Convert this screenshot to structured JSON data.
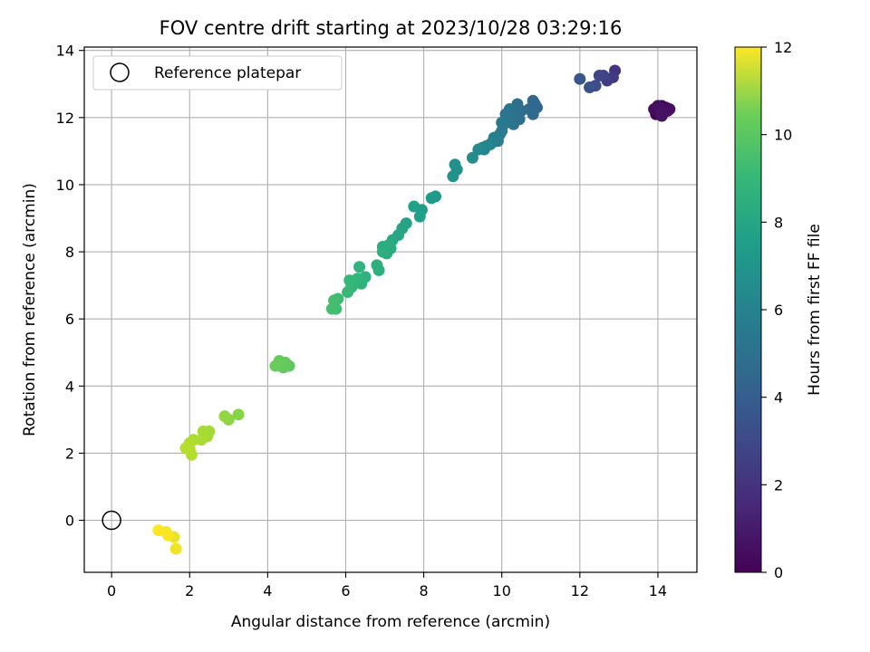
{
  "chart_data": {
    "type": "scatter",
    "title": "FOV centre drift starting at 2023/10/28 03:29:16",
    "xlabel": "Angular distance from reference (arcmin)",
    "ylabel": "Rotation from reference (arcmin)",
    "xlim": [
      -0.7,
      15
    ],
    "ylim": [
      -1.55,
      14.1
    ],
    "xticks": [
      0,
      2,
      4,
      6,
      8,
      10,
      12,
      14
    ],
    "yticks": [
      0,
      2,
      4,
      6,
      8,
      10,
      12,
      14
    ],
    "grid": true,
    "legend": {
      "placement": "top-left",
      "entries": [
        "Reference platepar"
      ]
    },
    "reference_point": {
      "x": 0,
      "y": 0
    },
    "colorbar": {
      "label": "Hours from first FF file",
      "range": [
        0,
        12
      ],
      "ticks": [
        0,
        2,
        4,
        6,
        8,
        10,
        12
      ],
      "colormap": "viridis"
    },
    "points": [
      {
        "x": 14.0,
        "y": 12.2,
        "h": 0.0
      },
      {
        "x": 14.05,
        "y": 12.1,
        "h": 0.1
      },
      {
        "x": 13.95,
        "y": 12.1,
        "h": 0.15
      },
      {
        "x": 14.1,
        "y": 12.35,
        "h": 0.2
      },
      {
        "x": 14.2,
        "y": 12.3,
        "h": 0.25
      },
      {
        "x": 14.15,
        "y": 12.15,
        "h": 0.3
      },
      {
        "x": 13.9,
        "y": 12.25,
        "h": 0.35
      },
      {
        "x": 14.3,
        "y": 12.25,
        "h": 0.4
      },
      {
        "x": 14.0,
        "y": 12.35,
        "h": 0.45
      },
      {
        "x": 14.25,
        "y": 12.2,
        "h": 0.5
      },
      {
        "x": 14.05,
        "y": 12.3,
        "h": 0.55
      },
      {
        "x": 14.1,
        "y": 12.05,
        "h": 0.6
      },
      {
        "x": 12.9,
        "y": 13.4,
        "h": 1.8
      },
      {
        "x": 12.85,
        "y": 13.2,
        "h": 2.0
      },
      {
        "x": 12.7,
        "y": 13.1,
        "h": 2.2
      },
      {
        "x": 12.6,
        "y": 13.25,
        "h": 2.4
      },
      {
        "x": 12.5,
        "y": 13.25,
        "h": 2.6
      },
      {
        "x": 12.4,
        "y": 12.95,
        "h": 2.8
      },
      {
        "x": 12.25,
        "y": 12.9,
        "h": 3.0
      },
      {
        "x": 12.0,
        "y": 13.15,
        "h": 3.2
      },
      {
        "x": 10.9,
        "y": 12.3,
        "h": 3.9
      },
      {
        "x": 10.85,
        "y": 12.4,
        "h": 4.0
      },
      {
        "x": 10.8,
        "y": 12.5,
        "h": 4.05
      },
      {
        "x": 10.8,
        "y": 12.1,
        "h": 4.1
      },
      {
        "x": 10.7,
        "y": 12.25,
        "h": 4.15
      },
      {
        "x": 10.5,
        "y": 12.2,
        "h": 4.2
      },
      {
        "x": 10.45,
        "y": 11.95,
        "h": 4.3
      },
      {
        "x": 10.4,
        "y": 12.4,
        "h": 4.35
      },
      {
        "x": 10.35,
        "y": 12.05,
        "h": 4.4
      },
      {
        "x": 10.3,
        "y": 12.2,
        "h": 4.45
      },
      {
        "x": 10.3,
        "y": 11.8,
        "h": 4.5
      },
      {
        "x": 10.25,
        "y": 12.0,
        "h": 4.55
      },
      {
        "x": 10.2,
        "y": 12.25,
        "h": 4.6
      },
      {
        "x": 10.15,
        "y": 11.9,
        "h": 4.65
      },
      {
        "x": 10.1,
        "y": 12.1,
        "h": 4.7
      },
      {
        "x": 10.05,
        "y": 11.8,
        "h": 4.75
      },
      {
        "x": 10.0,
        "y": 11.85,
        "h": 4.8
      },
      {
        "x": 10.0,
        "y": 11.6,
        "h": 4.9
      },
      {
        "x": 9.95,
        "y": 11.5,
        "h": 5.0
      },
      {
        "x": 9.9,
        "y": 11.3,
        "h": 5.1
      },
      {
        "x": 9.8,
        "y": 11.4,
        "h": 5.2
      },
      {
        "x": 9.75,
        "y": 11.25,
        "h": 5.3
      },
      {
        "x": 9.7,
        "y": 11.2,
        "h": 5.4
      },
      {
        "x": 9.6,
        "y": 11.15,
        "h": 5.45
      },
      {
        "x": 9.55,
        "y": 11.05,
        "h": 5.5
      },
      {
        "x": 9.5,
        "y": 11.1,
        "h": 5.6
      },
      {
        "x": 9.4,
        "y": 11.05,
        "h": 5.7
      },
      {
        "x": 9.25,
        "y": 10.8,
        "h": 5.8
      },
      {
        "x": 8.85,
        "y": 10.45,
        "h": 6.0
      },
      {
        "x": 8.8,
        "y": 10.6,
        "h": 6.05
      },
      {
        "x": 8.75,
        "y": 10.25,
        "h": 6.1
      },
      {
        "x": 8.3,
        "y": 9.65,
        "h": 6.4
      },
      {
        "x": 8.2,
        "y": 9.6,
        "h": 6.5
      },
      {
        "x": 7.95,
        "y": 9.25,
        "h": 6.6
      },
      {
        "x": 7.9,
        "y": 9.05,
        "h": 6.7
      },
      {
        "x": 7.75,
        "y": 9.35,
        "h": 6.8
      },
      {
        "x": 7.55,
        "y": 8.85,
        "h": 6.9
      },
      {
        "x": 7.45,
        "y": 8.7,
        "h": 7.0
      },
      {
        "x": 7.35,
        "y": 8.5,
        "h": 7.1
      },
      {
        "x": 7.2,
        "y": 8.35,
        "h": 7.2
      },
      {
        "x": 7.15,
        "y": 8.1,
        "h": 7.3
      },
      {
        "x": 7.1,
        "y": 8.2,
        "h": 7.35
      },
      {
        "x": 7.05,
        "y": 7.95,
        "h": 7.4
      },
      {
        "x": 6.95,
        "y": 8.15,
        "h": 7.45
      },
      {
        "x": 6.95,
        "y": 8.0,
        "h": 7.5
      },
      {
        "x": 6.8,
        "y": 7.6,
        "h": 7.55
      },
      {
        "x": 6.85,
        "y": 7.45,
        "h": 7.6
      },
      {
        "x": 6.5,
        "y": 7.25,
        "h": 7.7
      },
      {
        "x": 6.4,
        "y": 7.05,
        "h": 7.75
      },
      {
        "x": 6.35,
        "y": 7.55,
        "h": 7.8
      },
      {
        "x": 6.3,
        "y": 7.2,
        "h": 7.85
      },
      {
        "x": 6.2,
        "y": 7.1,
        "h": 7.9
      },
      {
        "x": 6.15,
        "y": 6.95,
        "h": 7.95
      },
      {
        "x": 6.1,
        "y": 7.15,
        "h": 8.0
      },
      {
        "x": 6.05,
        "y": 6.8,
        "h": 8.05
      },
      {
        "x": 5.8,
        "y": 6.6,
        "h": 8.2
      },
      {
        "x": 5.75,
        "y": 6.3,
        "h": 8.3
      },
      {
        "x": 5.7,
        "y": 6.55,
        "h": 8.35
      },
      {
        "x": 5.65,
        "y": 6.3,
        "h": 8.4
      },
      {
        "x": 4.55,
        "y": 4.6,
        "h": 9.0
      },
      {
        "x": 4.45,
        "y": 4.7,
        "h": 9.05
      },
      {
        "x": 4.4,
        "y": 4.55,
        "h": 9.1
      },
      {
        "x": 4.3,
        "y": 4.75,
        "h": 9.15
      },
      {
        "x": 4.2,
        "y": 4.6,
        "h": 9.2
      },
      {
        "x": 3.25,
        "y": 3.15,
        "h": 9.8
      },
      {
        "x": 3.0,
        "y": 3.0,
        "h": 9.9
      },
      {
        "x": 2.9,
        "y": 3.1,
        "h": 10.0
      },
      {
        "x": 2.5,
        "y": 2.65,
        "h": 10.3
      },
      {
        "x": 2.45,
        "y": 2.5,
        "h": 10.35
      },
      {
        "x": 2.35,
        "y": 2.65,
        "h": 10.4
      },
      {
        "x": 2.3,
        "y": 2.4,
        "h": 10.45
      },
      {
        "x": 2.1,
        "y": 2.4,
        "h": 10.5
      },
      {
        "x": 2.0,
        "y": 2.3,
        "h": 10.55
      },
      {
        "x": 2.0,
        "y": 2.1,
        "h": 10.6
      },
      {
        "x": 2.05,
        "y": 1.95,
        "h": 10.65
      },
      {
        "x": 1.9,
        "y": 2.15,
        "h": 10.7
      },
      {
        "x": 1.6,
        "y": -0.5,
        "h": 11.6
      },
      {
        "x": 1.65,
        "y": -0.85,
        "h": 11.7
      },
      {
        "x": 1.4,
        "y": -0.35,
        "h": 11.8
      },
      {
        "x": 1.45,
        "y": -0.45,
        "h": 11.9
      },
      {
        "x": 1.2,
        "y": -0.3,
        "h": 12.0
      }
    ]
  }
}
